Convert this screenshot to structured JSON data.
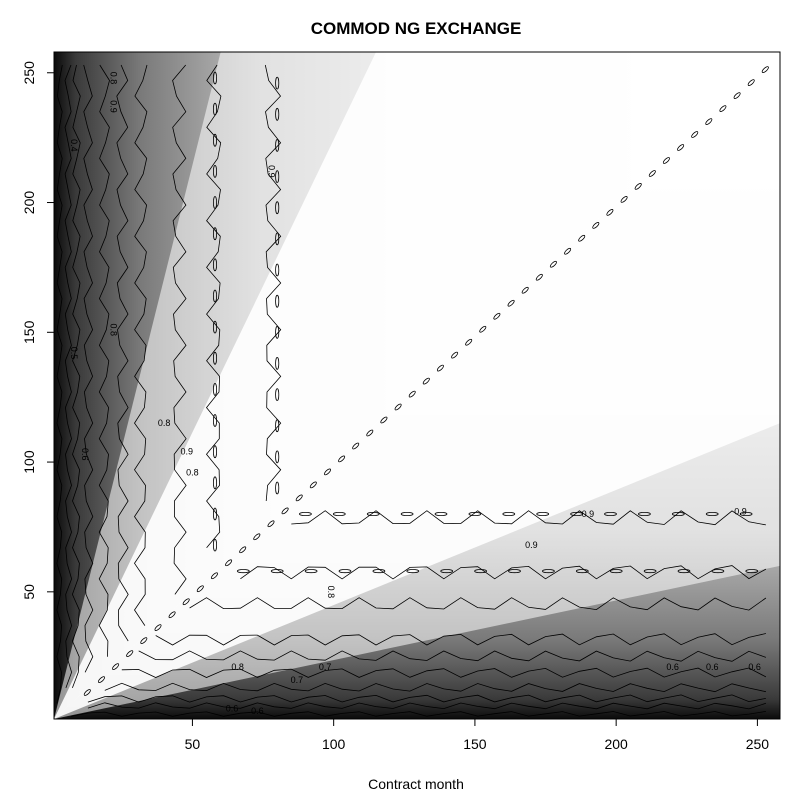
{
  "chart_data": {
    "type": "heatmap",
    "title": "COMMOD NG EXCHANGE",
    "xlabel": "Contract month",
    "ylabel": "",
    "xlim": [
      1,
      258
    ],
    "ylim": [
      1,
      258
    ],
    "x_ticks": [
      50,
      100,
      150,
      200,
      250
    ],
    "y_ticks": [
      50,
      100,
      150,
      200,
      250
    ],
    "colorscale": "grayscale: dark = low correlation, white = high correlation",
    "contour_levels": [
      0.4,
      0.5,
      0.6,
      0.7,
      0.8,
      0.9
    ],
    "contour_labels": [
      {
        "text": "0.4",
        "x": 8,
        "y": 222,
        "rotate": true
      },
      {
        "text": "0.5",
        "x": 8,
        "y": 142,
        "rotate": true
      },
      {
        "text": "0.6",
        "x": 12,
        "y": 103,
        "rotate": true
      },
      {
        "text": "0.8",
        "x": 22,
        "y": 151,
        "rotate": true
      },
      {
        "text": "0.8",
        "x": 22,
        "y": 248,
        "rotate": true
      },
      {
        "text": "0.9",
        "x": 22,
        "y": 237,
        "rotate": true
      },
      {
        "text": "0.9",
        "x": 78,
        "y": 212,
        "rotate": true
      },
      {
        "text": "0.8",
        "x": 40,
        "y": 115,
        "rotate": false
      },
      {
        "text": "0.9",
        "x": 48,
        "y": 104,
        "rotate": false
      },
      {
        "text": "0.8",
        "x": 50,
        "y": 96,
        "rotate": false
      },
      {
        "text": "0.8",
        "x": 99,
        "y": 50,
        "rotate": true
      },
      {
        "text": "0.8",
        "x": 66,
        "y": 21,
        "rotate": false
      },
      {
        "text": "0.7",
        "x": 97,
        "y": 21,
        "rotate": false
      },
      {
        "text": "0.7",
        "x": 87,
        "y": 16,
        "rotate": false
      },
      {
        "text": "0.6",
        "x": 64,
        "y": 5,
        "rotate": false
      },
      {
        "text": "0.6",
        "x": 73,
        "y": 4,
        "rotate": false
      },
      {
        "text": "0.6",
        "x": 220,
        "y": 21,
        "rotate": false
      },
      {
        "text": "0.6",
        "x": 234,
        "y": 21,
        "rotate": false
      },
      {
        "text": "0.6",
        "x": 249,
        "y": 21,
        "rotate": false
      },
      {
        "text": "0.9",
        "x": 170,
        "y": 68,
        "rotate": false
      },
      {
        "text": "0.9",
        "x": 190,
        "y": 80,
        "rotate": false
      },
      {
        "text": "0.9",
        "x": 244,
        "y": 81,
        "rotate": false
      }
    ]
  }
}
